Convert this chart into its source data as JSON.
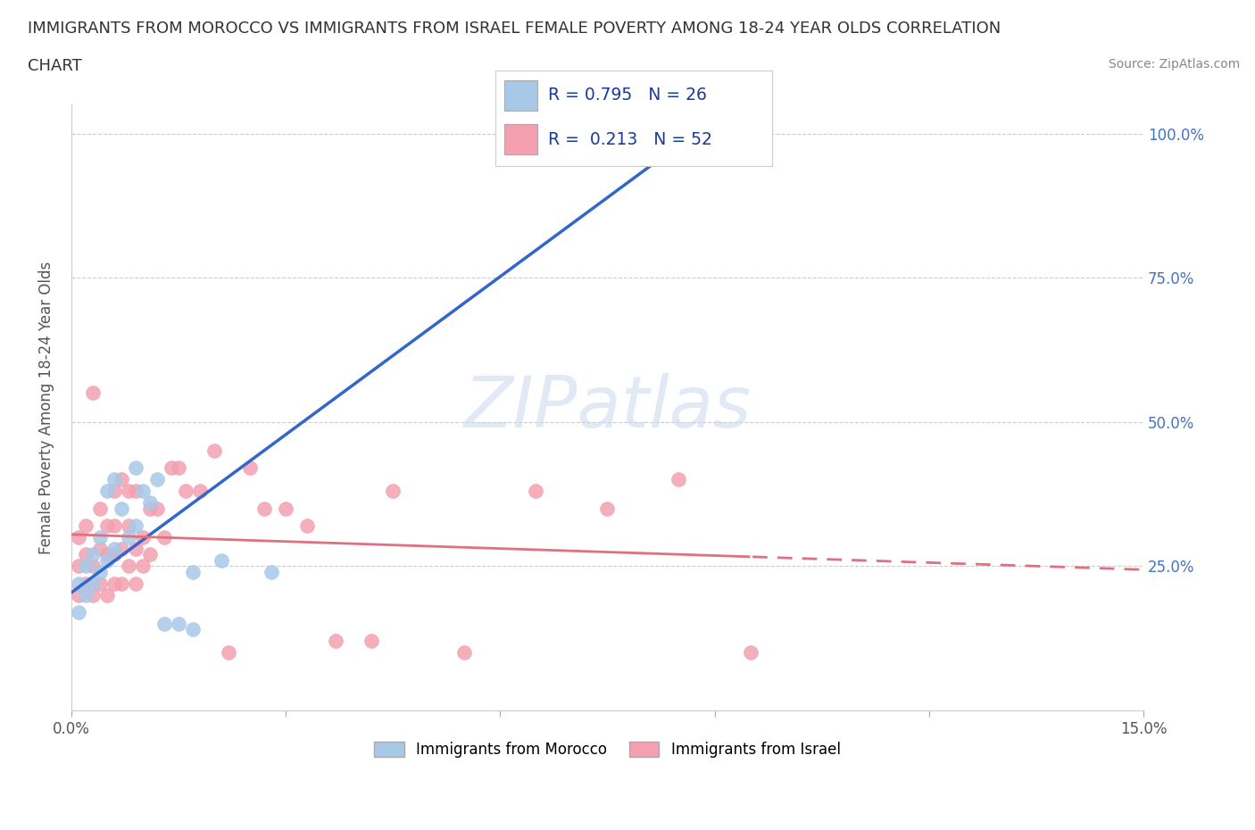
{
  "title_line1": "IMMIGRANTS FROM MOROCCO VS IMMIGRANTS FROM ISRAEL FEMALE POVERTY AMONG 18-24 YEAR OLDS CORRELATION",
  "title_line2": "CHART",
  "source": "Source: ZipAtlas.com",
  "ylabel": "Female Poverty Among 18-24 Year Olds",
  "xlim": [
    0.0,
    0.15
  ],
  "ylim": [
    0.0,
    1.05
  ],
  "morocco_color": "#a8c8e8",
  "israel_color": "#f4a0b0",
  "morocco_line_color": "#3366cc",
  "israel_line_color": "#e07080",
  "watermark": "ZIPatlas",
  "legend_r1": "R = 0.795   N = 26",
  "legend_r2": "R =  0.213   N = 52",
  "legend_label1": "Immigrants from Morocco",
  "legend_label2": "Immigrants from Israel",
  "morocco_scatter_x": [
    0.001,
    0.001,
    0.002,
    0.002,
    0.003,
    0.003,
    0.004,
    0.004,
    0.005,
    0.005,
    0.006,
    0.006,
    0.007,
    0.008,
    0.009,
    0.009,
    0.01,
    0.011,
    0.012,
    0.013,
    0.015,
    0.017,
    0.017,
    0.021,
    0.028,
    0.065
  ],
  "morocco_scatter_y": [
    0.17,
    0.22,
    0.2,
    0.25,
    0.22,
    0.27,
    0.24,
    0.3,
    0.26,
    0.38,
    0.28,
    0.4,
    0.35,
    0.3,
    0.32,
    0.42,
    0.38,
    0.36,
    0.4,
    0.15,
    0.15,
    0.14,
    0.24,
    0.26,
    0.24,
    1.0
  ],
  "israel_scatter_x": [
    0.001,
    0.001,
    0.001,
    0.002,
    0.002,
    0.002,
    0.003,
    0.003,
    0.003,
    0.004,
    0.004,
    0.004,
    0.005,
    0.005,
    0.005,
    0.006,
    0.006,
    0.006,
    0.006,
    0.007,
    0.007,
    0.007,
    0.008,
    0.008,
    0.008,
    0.009,
    0.009,
    0.009,
    0.01,
    0.01,
    0.011,
    0.011,
    0.012,
    0.013,
    0.014,
    0.015,
    0.016,
    0.018,
    0.02,
    0.022,
    0.025,
    0.027,
    0.03,
    0.033,
    0.037,
    0.042,
    0.045,
    0.055,
    0.065,
    0.075,
    0.085,
    0.095
  ],
  "israel_scatter_y": [
    0.2,
    0.25,
    0.3,
    0.22,
    0.27,
    0.32,
    0.2,
    0.25,
    0.55,
    0.22,
    0.28,
    0.35,
    0.2,
    0.27,
    0.32,
    0.22,
    0.27,
    0.32,
    0.38,
    0.22,
    0.28,
    0.4,
    0.25,
    0.32,
    0.38,
    0.22,
    0.28,
    0.38,
    0.25,
    0.3,
    0.27,
    0.35,
    0.35,
    0.3,
    0.42,
    0.42,
    0.38,
    0.38,
    0.45,
    0.1,
    0.42,
    0.35,
    0.35,
    0.32,
    0.12,
    0.12,
    0.38,
    0.1,
    0.38,
    0.35,
    0.4,
    0.1
  ],
  "background_color": "#ffffff",
  "grid_color": "#cccccc"
}
